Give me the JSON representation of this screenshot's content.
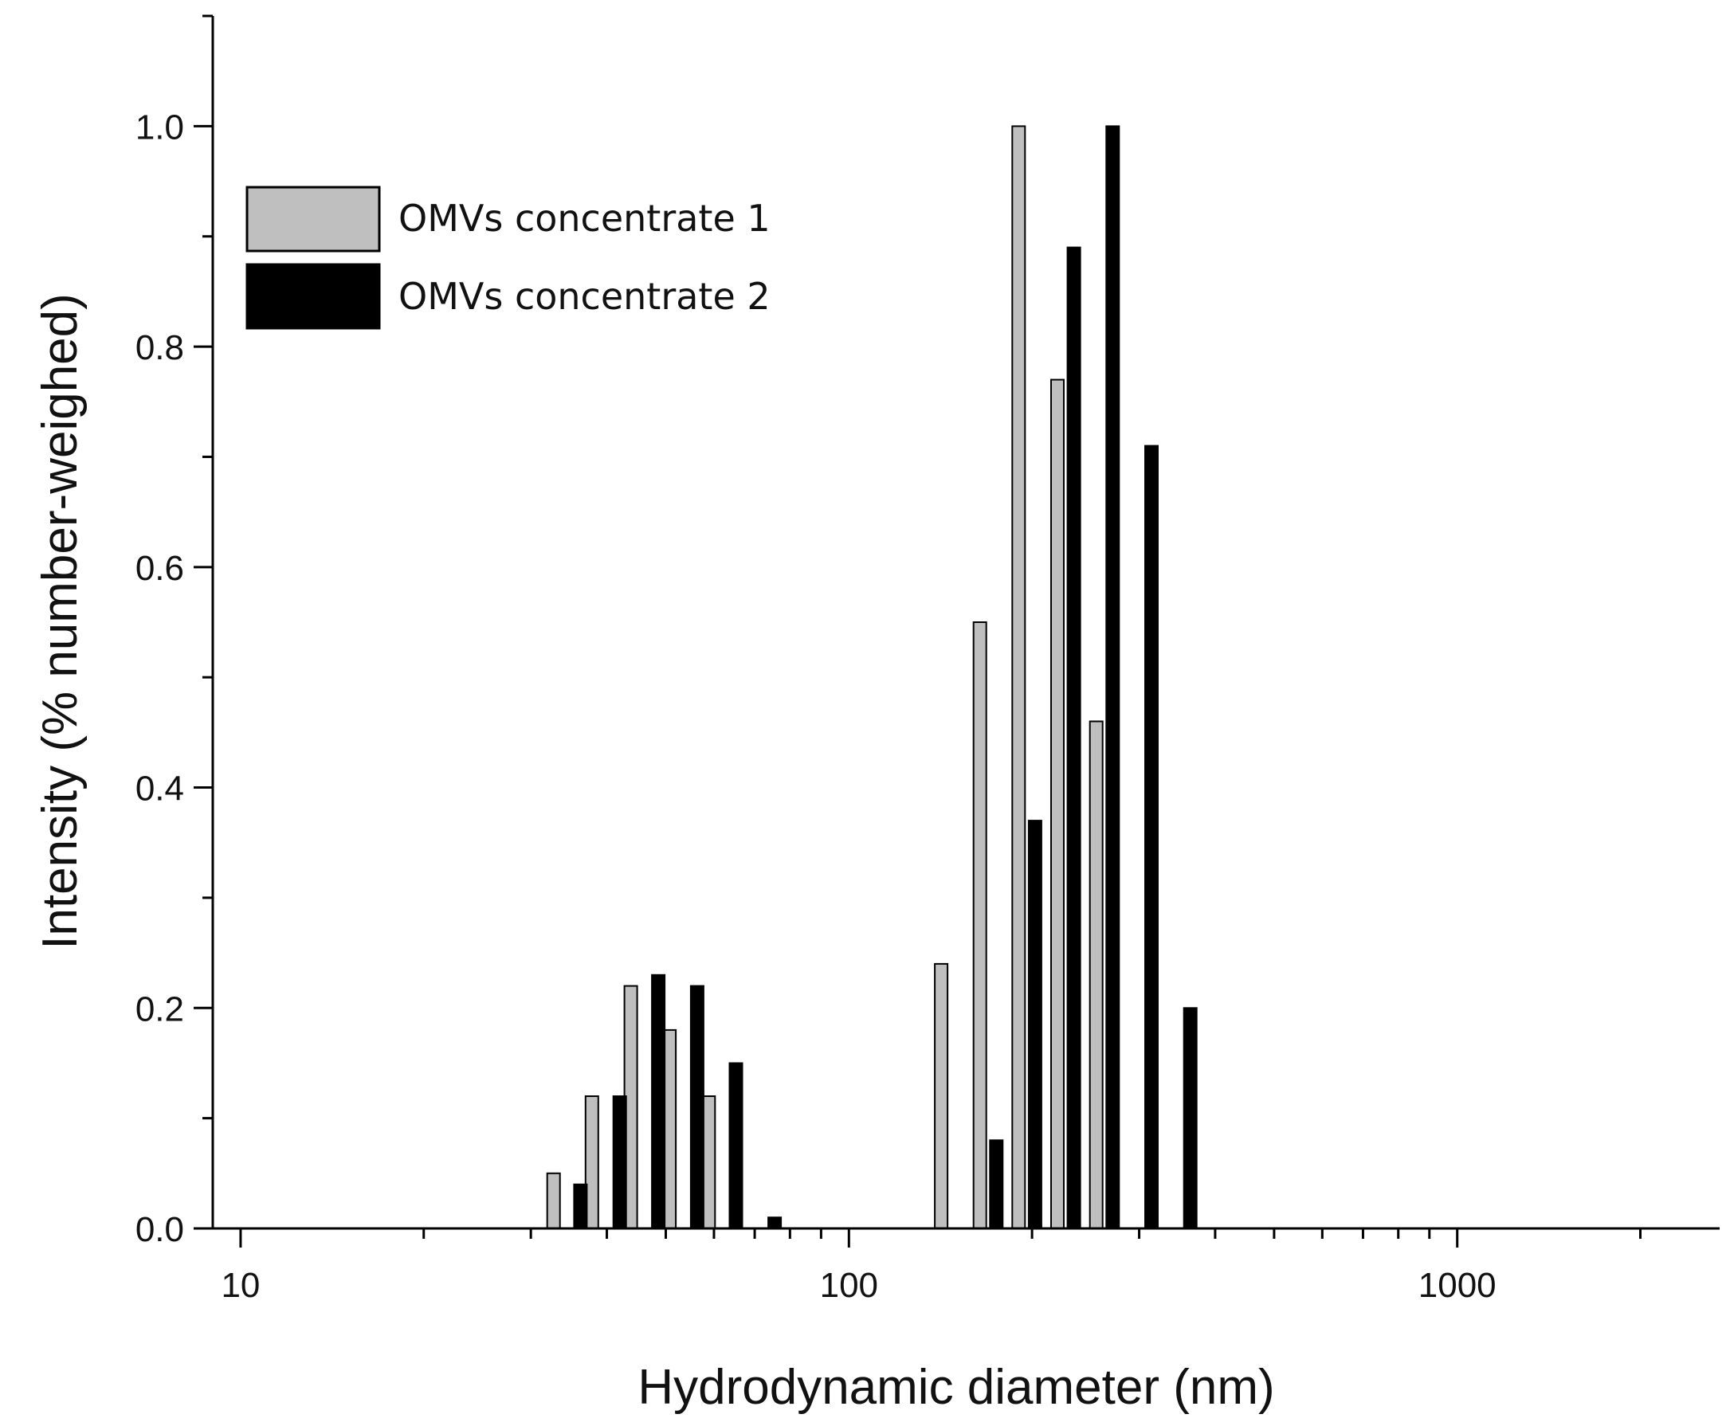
{
  "chart_data": {
    "type": "bar",
    "x_scale": "log",
    "xlabel": "Hydrodynamic diameter (nm)",
    "ylabel": "Intensity (% number-weighed)",
    "xlim": [
      9.0,
      2700
    ],
    "ylim": [
      0,
      1.1
    ],
    "x_ticks": [
      10,
      100,
      1000
    ],
    "x_tick_labels": [
      "10",
      "100",
      "1000"
    ],
    "y_ticks": [
      0.0,
      0.2,
      0.4,
      0.6,
      0.8,
      1.0
    ],
    "y_tick_labels": [
      "0.0",
      "0.2",
      "0.4",
      "0.6",
      "0.8",
      "1.0"
    ],
    "grid": false,
    "legend_position": "top-left",
    "series": [
      {
        "name": "OMVs concentrate 1",
        "color": "#bfbfbf",
        "x": [
          32.7,
          37.8,
          43.8,
          50.7,
          58.8,
          141.8,
          164.2,
          190.1,
          220.2,
          255.0
        ],
        "values": [
          0.05,
          0.12,
          0.22,
          0.18,
          0.12,
          0.24,
          0.55,
          1.0,
          0.77,
          0.46
        ]
      },
      {
        "name": "OMVs concentrate 2",
        "color": "#000000",
        "x": [
          36.2,
          42.0,
          48.6,
          56.3,
          65.2,
          75.5,
          174.7,
          202.3,
          234.3,
          271.4,
          314.3,
          364.0
        ],
        "values": [
          0.04,
          0.12,
          0.23,
          0.22,
          0.15,
          0.01,
          0.08,
          0.37,
          0.89,
          1.0,
          0.71,
          0.2
        ]
      }
    ]
  }
}
